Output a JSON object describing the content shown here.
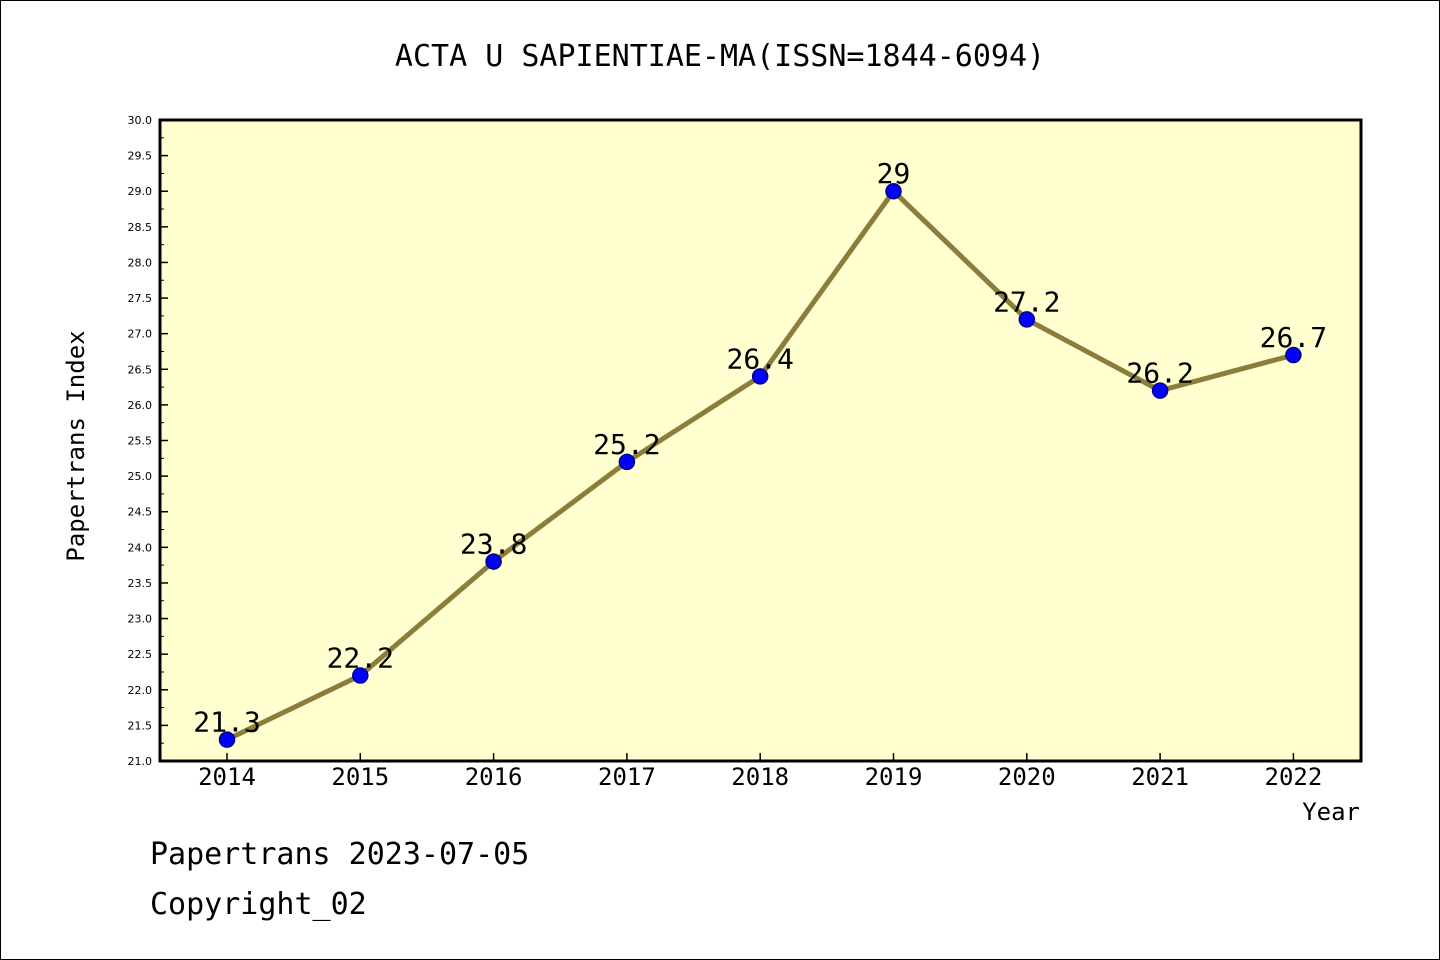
{
  "footer": {
    "source_line": "Papertrans 2023-07-05",
    "copyright_line": "Copyright_02"
  },
  "colors": {
    "background": "#ffffff",
    "plot_background": "#ffffd0",
    "line": "#8b7d3a",
    "marker_fill": "#0000ff",
    "marker_stroke": "#00008b",
    "axis": "#000000"
  },
  "chart_data": {
    "type": "line",
    "title": "ACTA U SAPIENTIAE-MA(ISSN=1844-6094)",
    "xlabel": "Year",
    "ylabel": "Papertrans Index",
    "categories": [
      "2014",
      "2015",
      "2016",
      "2017",
      "2018",
      "2019",
      "2020",
      "2021",
      "2022"
    ],
    "series": [
      {
        "values": [
          21.3,
          22.2,
          23.8,
          25.2,
          26.4,
          29,
          27.2,
          26.2,
          26.7
        ],
        "labels": [
          "21.3",
          "22.2",
          "23.8",
          "25.2",
          "26.4",
          "29",
          "27.2",
          "26.2",
          "26.7"
        ]
      }
    ],
    "ylim": [
      21.0,
      30.0
    ],
    "ytick_step": 0.5,
    "yticks": [
      "21.0",
      "21.5",
      "22.0",
      "22.5",
      "23.0",
      "23.5",
      "24.0",
      "24.5",
      "25.0",
      "25.5",
      "26.0",
      "26.5",
      "27.0",
      "27.5",
      "28.0",
      "28.5",
      "29.0",
      "29.5",
      "30.0"
    ],
    "grid": false,
    "legend": "none"
  }
}
